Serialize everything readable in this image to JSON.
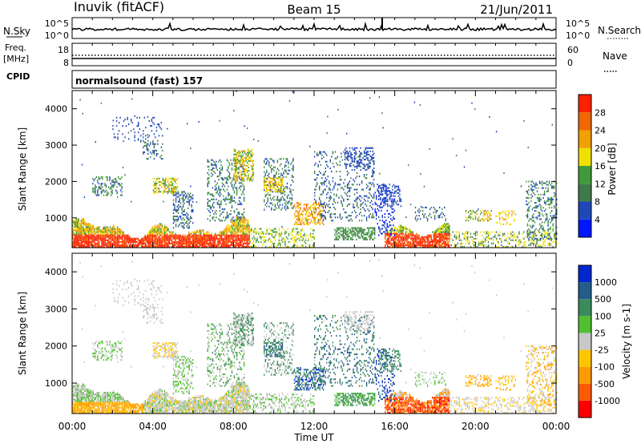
{
  "header": {
    "radar": "Inuvik (fitACF)",
    "beam": "Beam 15",
    "date": "21/Jun/2011"
  },
  "top_panels": {
    "nsky": {
      "label": "N.Sky",
      "ticks": [
        "10^5",
        "10^0"
      ]
    },
    "nsearch": {
      "label": "N.Search",
      "ticks": [
        "10^5",
        "10^0"
      ]
    },
    "freq": {
      "label_line1": "Freq.",
      "label_line2": "[MHz]",
      "ticks": [
        "18",
        "8"
      ]
    },
    "nave": {
      "label": "Nave",
      "ticks": [
        "60",
        "0"
      ]
    },
    "cpid": {
      "label": "CPID",
      "program": "normalsound (fast) 157"
    }
  },
  "colors": {
    "power": [
      "#0018ff",
      "#1f47b8",
      "#3f7a4a",
      "#3f9b3a",
      "#f0e000",
      "#f0a000",
      "#f06800",
      "#ff2000"
    ],
    "velocity": [
      "#ff0000",
      "#ff5a00",
      "#ff9a00",
      "#ffc600",
      "#c8c8c8",
      "#50c030",
      "#3a8a5a",
      "#245d8a",
      "#0026d0"
    ]
  },
  "chart_data": [
    {
      "type": "heatmap",
      "name": "power",
      "ylabel": "Slant Range [km]",
      "yticks": [
        1000,
        2000,
        3000,
        4000
      ],
      "ylim": [
        180,
        4500
      ],
      "xlim": [
        0,
        24
      ],
      "colorbar_label": "Power [dB]",
      "colorbar_ticks": [
        "4",
        "8",
        "12",
        "16",
        "20",
        "24",
        "28"
      ],
      "colorbar_range": [
        0,
        32
      ]
    },
    {
      "type": "heatmap",
      "name": "velocity",
      "ylabel": "Slant Range [km]",
      "yticks": [
        1000,
        2000,
        3000,
        4000
      ],
      "ylim": [
        180,
        4500
      ],
      "xlim": [
        0,
        24
      ],
      "colorbar_label": "Velocity [m s-1]",
      "colorbar_ticks": [
        "-1000",
        "-500",
        "-100",
        "-25",
        "25",
        "100",
        "500",
        "1000"
      ]
    }
  ],
  "time_axis": {
    "label": "Time UT",
    "ticks": [
      "00:00",
      "04:00",
      "08:00",
      "12:00",
      "16:00",
      "20:00",
      "00:00"
    ]
  }
}
